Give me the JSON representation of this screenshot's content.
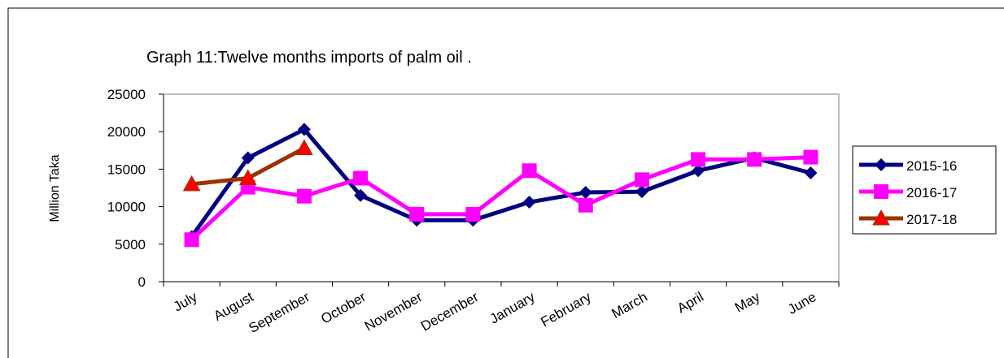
{
  "chart_data": {
    "type": "line",
    "title": "Graph 11:Twelve months imports of palm oil .",
    "y_label": "Million Taka",
    "categories": [
      "July",
      "August",
      "September",
      "October",
      "November",
      "December",
      "January",
      "February",
      "March",
      "April",
      "May",
      "June"
    ],
    "series": [
      {
        "name": "2015-16",
        "color": "#000080",
        "marker": "diamond",
        "values": [
          6000,
          16500,
          20300,
          11500,
          8200,
          8200,
          10600,
          11900,
          12000,
          14800,
          16500,
          14500
        ]
      },
      {
        "name": "2016-17",
        "color": "#ff00ff",
        "marker": "square",
        "values": [
          5600,
          12600,
          11400,
          13800,
          9000,
          9000,
          14800,
          10200,
          13600,
          16300,
          16300,
          16600
        ]
      },
      {
        "name": "2017-18",
        "color": "#993300",
        "marker": "triangle",
        "marker_color": "#ff0000",
        "values": [
          13000,
          13800,
          17800,
          null,
          null,
          null,
          null,
          null,
          null,
          null,
          null,
          null
        ]
      }
    ],
    "ylim": [
      0,
      25000
    ],
    "yticks": [
      0,
      5000,
      10000,
      15000,
      20000,
      25000
    ],
    "grid": false,
    "legend": "right"
  }
}
